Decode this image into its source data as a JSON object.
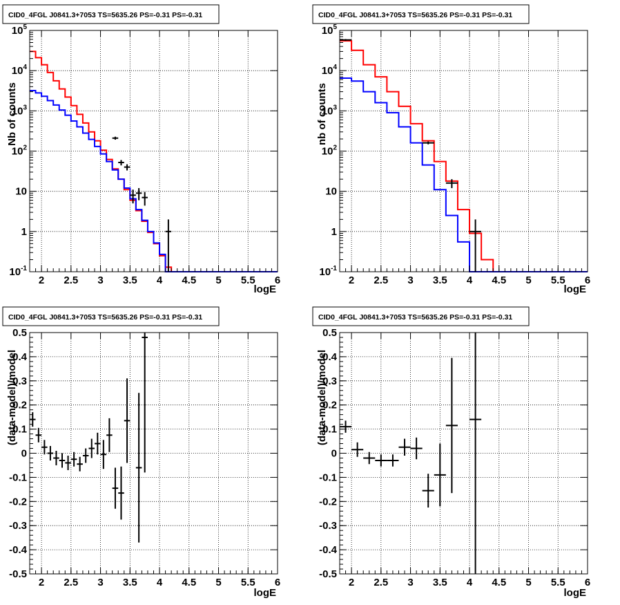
{
  "panels": [
    {
      "title": "CID0_4FGL J0841.3+7053 TS=5635.26 PS=-0.31 PS=-0.31",
      "xlabel": "logE",
      "ylabel": "Nb of counts"
    },
    {
      "title": "CID0_4FGL J0841.3+7053 TS=5635.26 PS=-0.31 PS=-0.31",
      "xlabel": "logE",
      "ylabel": "nb of counts"
    },
    {
      "title": "CID0_4FGL J0841.3+7053 TS=5635.26 PS=-0.31 PS=-0.31",
      "xlabel": "logE",
      "ylabel": "(data-model)/model"
    },
    {
      "title": "CID0_4FGL J0841.3+7053 TS=5635.26 PS=-0.31 PS=-0.31",
      "xlabel": "logE",
      "ylabel": "(data-model)/model"
    }
  ],
  "colors": {
    "red": "#ff0000",
    "blue": "#0000ff",
    "black": "#000000",
    "grid": "#000000"
  },
  "chart_data": [
    {
      "type": "line",
      "xlim": [
        1.8,
        6
      ],
      "ylim": [
        0.1,
        100000
      ],
      "yscale": "log",
      "grid": true,
      "xticks": [
        "2",
        "2.5",
        "3",
        "3.5",
        "4",
        "4.5",
        "5",
        "5.5",
        "6"
      ],
      "yticks": [
        "10^-1",
        "1",
        "10",
        "10^2",
        "10^3",
        "10^4",
        "10^5"
      ],
      "bin_edges": [
        1.8,
        1.9,
        2.0,
        2.1,
        2.2,
        2.3,
        2.4,
        2.5,
        2.6,
        2.7,
        2.8,
        2.9,
        3.0,
        3.1,
        3.2,
        3.3,
        3.4,
        3.5,
        3.6,
        3.7,
        3.8,
        3.9,
        4.0,
        4.1,
        4.2,
        4.3,
        4.4,
        4.5,
        4.6,
        4.7,
        4.8,
        4.9,
        5.0,
        5.1,
        5.2,
        5.3,
        5.4,
        5.5,
        5.6,
        5.7,
        5.8,
        5.9,
        6.0
      ],
      "series": [
        {
          "color": "red",
          "values": [
            30000,
            21000,
            14000,
            9000,
            5600,
            3500,
            2200,
            1350,
            820,
            500,
            300,
            180,
            105,
            62,
            36,
            20,
            11,
            6,
            3.3,
            1.8,
            0.95,
            0.5,
            0.25,
            0.13,
            0.1,
            0.1,
            0.1,
            0.1,
            0.1,
            0.1,
            0.1,
            0.1,
            0.1,
            0.1,
            0.1,
            0.1,
            0.1,
            0.1,
            0.1,
            0.1,
            0.1,
            0.1
          ]
        },
        {
          "color": "blue",
          "values": [
            3200,
            2800,
            2300,
            1800,
            1400,
            1050,
            780,
            560,
            400,
            280,
            195,
            130,
            85,
            55,
            34,
            20,
            12,
            6.5,
            3.5,
            1.9,
            1.0,
            0.52,
            0.27,
            0.1,
            0.1,
            0.1,
            0.1,
            0.1,
            0.1,
            0.1,
            0.1,
            0.1,
            0.1,
            0.1,
            0.1,
            0.1,
            0.1,
            0.1,
            0.1,
            0.1,
            0.1,
            0.1
          ]
        }
      ],
      "points": [
        {
          "x": 3.25,
          "y": 210,
          "dy": 18
        },
        {
          "x": 3.35,
          "y": 52,
          "dy": 8
        },
        {
          "x": 3.45,
          "y": 40,
          "dy": 7
        },
        {
          "x": 3.55,
          "y": 8,
          "dy": 3
        },
        {
          "x": 3.65,
          "y": 9,
          "dy": 3
        },
        {
          "x": 3.75,
          "y": 7,
          "dy": 2.6
        },
        {
          "x": 4.15,
          "y": 1,
          "dy": 1
        }
      ]
    },
    {
      "type": "line",
      "xlim": [
        1.8,
        6
      ],
      "ylim": [
        0.1,
        100000
      ],
      "yscale": "log",
      "grid": true,
      "xticks": [
        "2",
        "2.5",
        "3",
        "3.5",
        "4",
        "4.5",
        "5",
        "5.5",
        "6"
      ],
      "yticks": [
        "10^-1",
        "1",
        "10",
        "10^2",
        "10^3",
        "10^4",
        "10^5"
      ],
      "bin_edges": [
        1.8,
        2.0,
        2.2,
        2.4,
        2.6,
        2.8,
        3.0,
        3.2,
        3.4,
        3.6,
        3.8,
        4.0,
        4.2,
        4.4,
        4.6,
        4.8,
        5.0,
        5.2,
        5.4,
        5.6,
        5.8,
        6.0
      ],
      "series": [
        {
          "color": "red",
          "values": [
            55000,
            32000,
            14000,
            7000,
            3000,
            1300,
            480,
            180,
            55,
            18,
            3.5,
            0.9,
            0.2,
            0.1,
            0.1,
            0.1,
            0.1,
            0.1,
            0.1,
            0.1,
            0.1
          ]
        },
        {
          "color": "blue",
          "values": [
            6500,
            5500,
            3000,
            1600,
            900,
            400,
            160,
            45,
            11,
            2.5,
            0.55,
            0.1,
            0.1,
            0.1,
            0.1,
            0.1,
            0.1,
            0.1,
            0.1,
            0.1,
            0.1
          ]
        }
      ],
      "points": [
        {
          "x": 1.9,
          "y": 58000,
          "dy": 3000
        },
        {
          "x": 3.3,
          "y": 160,
          "dy": 13
        },
        {
          "x": 3.7,
          "y": 16,
          "dy": 4
        },
        {
          "x": 4.1,
          "y": 1,
          "dy": 1
        }
      ]
    },
    {
      "type": "scatter",
      "xlim": [
        1.8,
        6
      ],
      "ylim": [
        -0.5,
        0.5
      ],
      "grid": true,
      "xticks": [
        "2",
        "2.5",
        "3",
        "3.5",
        "4",
        "4.5",
        "5",
        "5.5",
        "6"
      ],
      "yticks": [
        "-0.5",
        "-0.4",
        "-0.3",
        "-0.2",
        "-0.1",
        "0",
        "0.1",
        "0.2",
        "0.3",
        "0.4",
        "0.5"
      ],
      "xerr": 0.05,
      "points": [
        {
          "x": 1.85,
          "y": 0.14,
          "dy": 0.03
        },
        {
          "x": 1.95,
          "y": 0.075,
          "dy": 0.03
        },
        {
          "x": 2.05,
          "y": 0.025,
          "dy": 0.03
        },
        {
          "x": 2.15,
          "y": 0.0,
          "dy": 0.03
        },
        {
          "x": 2.25,
          "y": -0.02,
          "dy": 0.03
        },
        {
          "x": 2.35,
          "y": -0.03,
          "dy": 0.03
        },
        {
          "x": 2.45,
          "y": -0.04,
          "dy": 0.03
        },
        {
          "x": 2.55,
          "y": -0.025,
          "dy": 0.03
        },
        {
          "x": 2.65,
          "y": -0.045,
          "dy": 0.03
        },
        {
          "x": 2.75,
          "y": -0.01,
          "dy": 0.03
        },
        {
          "x": 2.85,
          "y": 0.02,
          "dy": 0.04
        },
        {
          "x": 2.95,
          "y": 0.04,
          "dy": 0.045
        },
        {
          "x": 3.05,
          "y": -0.005,
          "dy": 0.06
        },
        {
          "x": 3.15,
          "y": 0.075,
          "dy": 0.07
        },
        {
          "x": 3.25,
          "y": -0.145,
          "dy": 0.085
        },
        {
          "x": 3.35,
          "y": -0.165,
          "dy": 0.11
        },
        {
          "x": 3.45,
          "y": 0.135,
          "dy": 0.175
        },
        {
          "x": 3.65,
          "y": -0.06,
          "dy": 0.31
        },
        {
          "x": 3.75,
          "y": 0.48,
          "dy": 0.56
        }
      ]
    },
    {
      "type": "scatter",
      "xlim": [
        1.8,
        6
      ],
      "ylim": [
        -0.5,
        0.5
      ],
      "grid": true,
      "xticks": [
        "2",
        "2.5",
        "3",
        "3.5",
        "4",
        "4.5",
        "5",
        "5.5",
        "6"
      ],
      "yticks": [
        "-0.5",
        "-0.4",
        "-0.3",
        "-0.2",
        "-0.1",
        "0",
        "0.1",
        "0.2",
        "0.3",
        "0.4",
        "0.5"
      ],
      "xerr": 0.1,
      "points": [
        {
          "x": 1.9,
          "y": 0.11,
          "dy": 0.025
        },
        {
          "x": 2.1,
          "y": 0.015,
          "dy": 0.03
        },
        {
          "x": 2.3,
          "y": -0.02,
          "dy": 0.025
        },
        {
          "x": 2.5,
          "y": -0.03,
          "dy": 0.025
        },
        {
          "x": 2.7,
          "y": -0.03,
          "dy": 0.025
        },
        {
          "x": 2.9,
          "y": 0.025,
          "dy": 0.035
        },
        {
          "x": 3.1,
          "y": 0.02,
          "dy": 0.045
        },
        {
          "x": 3.3,
          "y": -0.155,
          "dy": 0.07
        },
        {
          "x": 3.5,
          "y": -0.09,
          "dy": 0.13
        },
        {
          "x": 3.7,
          "y": 0.115,
          "dy": 0.28
        },
        {
          "x": 4.1,
          "y": 0.14,
          "dy": 1.0
        }
      ]
    }
  ]
}
